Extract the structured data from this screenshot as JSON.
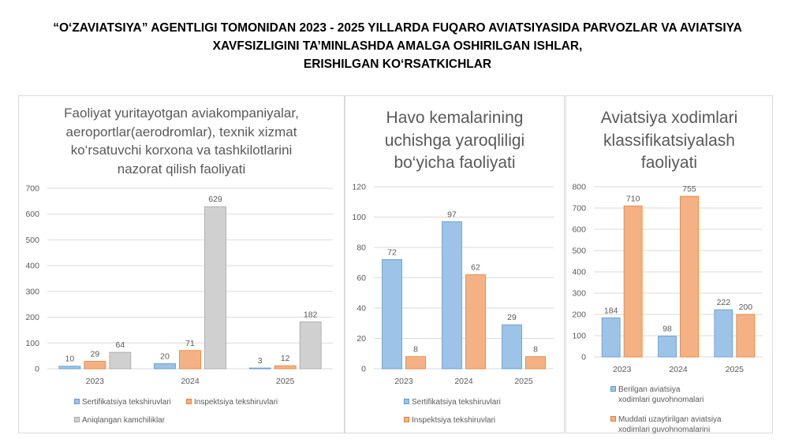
{
  "header": {
    "line1": "“O‘ZAVIATSIYA” AGENTLIGI TOMONIDAN 2023 - 2025 YILLARDA FUQARO AVIATSIYASIDA PARVOZLAR VA AVIATSIYA",
    "line2": "XAVFSIZLIGINI TA’MINLASHDA AMALGA OSHIRILGAN ISHLAR,",
    "line3": "ERISHILGAN KO‘RSATKICHLAR"
  },
  "colors": {
    "blue": "#9dc3e6",
    "orange": "#f4b183",
    "gray": "#d0d0d0",
    "grid": "#d9d9d9",
    "text": "#595959"
  },
  "chart_data": [
    {
      "type": "bar",
      "title_lines": [
        "Faoliyat yuritayotgan aviakompaniyalar,",
        "aeroportlar(aerodromlar), texnik xizmat",
        "ko‘rsatuvchi korxona va tashkilotlarini",
        "nazorat qilish faoliyati"
      ],
      "categories": [
        "2023",
        "2024",
        "2025"
      ],
      "series": [
        {
          "name": "Sertifikatsiya tekshiruvlari",
          "color": "blue",
          "values": [
            10,
            20,
            3
          ]
        },
        {
          "name": "Inspektsiya tekshiruvlari",
          "color": "orange",
          "values": [
            29,
            71,
            12
          ]
        },
        {
          "name": "Aniqlangan kamchiliklar",
          "color": "gray",
          "values": [
            64,
            629,
            182
          ]
        }
      ],
      "ylim": [
        0,
        700
      ],
      "yticks": [
        0,
        100,
        200,
        300,
        400,
        500,
        600,
        700
      ],
      "grid": true,
      "legend": "bottom"
    },
    {
      "type": "bar",
      "title_lines": [
        "Havo kemalarining",
        "uchishga yaroqliligi",
        "bo‘yicha faoliyati"
      ],
      "categories": [
        "2023",
        "2024",
        "2025"
      ],
      "series": [
        {
          "name": "Sertifikatsiya tekshiruvlari",
          "color": "blue",
          "values": [
            72,
            97,
            29
          ]
        },
        {
          "name": "Inspektsiya tekshiruvlari",
          "color": "orange",
          "values": [
            8,
            62,
            8
          ]
        }
      ],
      "ylim": [
        0,
        120
      ],
      "yticks": [
        0,
        20,
        40,
        60,
        80,
        100,
        120
      ],
      "grid": true,
      "legend": "bottom"
    },
    {
      "type": "bar",
      "title_lines": [
        "Aviatsiya xodimlari",
        "klassifikatsiyalash",
        "faoliyati"
      ],
      "categories": [
        "2023",
        "2024",
        "2025"
      ],
      "series": [
        {
          "name": "Berilgan aviatsiya xodimlari guvohnomalari",
          "color": "blue",
          "values": [
            184,
            98,
            222
          ]
        },
        {
          "name": "Muddati uzaytirilgan aviatsiya xodimlari guvohnomalarini",
          "color": "orange",
          "values": [
            710,
            755,
            200
          ]
        }
      ],
      "ylim": [
        0,
        800
      ],
      "yticks": [
        0,
        100,
        200,
        300,
        400,
        500,
        600,
        700,
        800
      ],
      "grid": true,
      "legend": "bottom"
    }
  ],
  "legends": {
    "p1": [
      "Sertifikatsiya tekshiruvlari",
      "Inspektsiya tekshiruvlari",
      "Aniqlangan kamchiliklar"
    ],
    "p2": [
      "Sertifikatsiya tekshiruvlari",
      "Inspektsiya tekshiruvlari"
    ],
    "p3a_line1": "Berilgan aviatsiya",
    "p3a_line2": "xodimlari guvohnomalari",
    "p3b_line1": "Muddati uzaytirilgan aviatsiya",
    "p3b_line2": "xodimlari guvohnomalarini"
  }
}
